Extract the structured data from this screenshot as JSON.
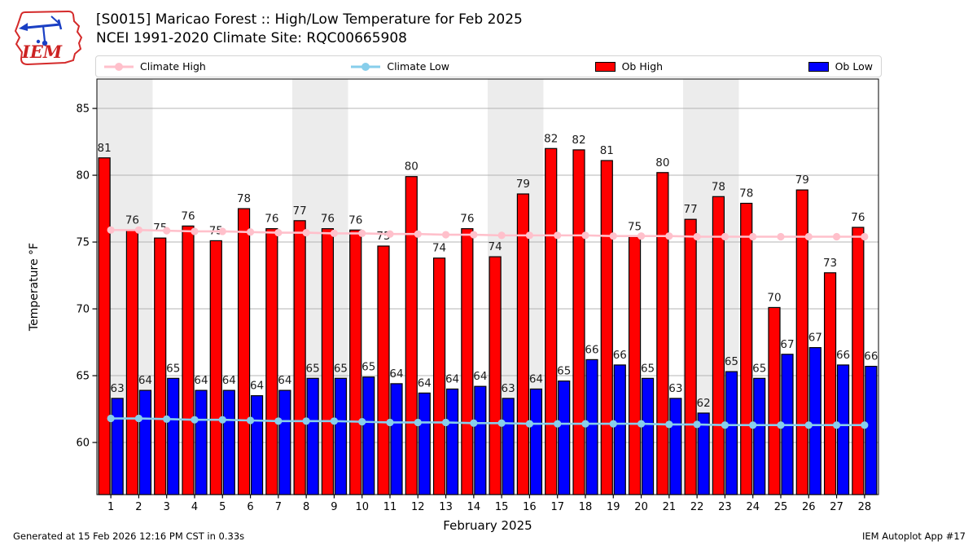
{
  "header": {
    "logo_text": "IEM",
    "title_line1": "[S0015] Maricao Forest :: High/Low Temperature for Feb 2025",
    "title_line2": "NCEI 1991-2020 Climate Site: RQC00665908"
  },
  "legend": {
    "items": [
      {
        "label": "Climate High",
        "type": "line",
        "color": "#ffc0cb"
      },
      {
        "label": "Climate Low",
        "type": "line",
        "color": "#87ceeb"
      },
      {
        "label": "Ob High",
        "type": "patch",
        "color": "#ff0000"
      },
      {
        "label": "Ob Low",
        "type": "patch",
        "color": "#0000ff"
      }
    ]
  },
  "footer": {
    "left": "Generated at 15 Feb 2026 12:16 PM CST in 0.33s",
    "right": "IEM Autoplot App #17"
  },
  "chart_data": {
    "type": "bar",
    "title": "[S0015] Maricao Forest :: High/Low Temperature for Feb 2025",
    "subtitle": "NCEI 1991-2020 Climate Site: RQC00665908",
    "xlabel": "February 2025",
    "ylabel": "Temperature °F",
    "x": [
      1,
      2,
      3,
      4,
      5,
      6,
      7,
      8,
      9,
      10,
      11,
      12,
      13,
      14,
      15,
      16,
      17,
      18,
      19,
      20,
      21,
      22,
      23,
      24,
      25,
      26,
      27,
      28
    ],
    "ylim": [
      56.1,
      87.2
    ],
    "yticks": [
      60,
      65,
      70,
      75,
      80,
      85
    ],
    "grid": "horizontal",
    "legend_position": "top",
    "weekend_bands": [
      [
        1,
        2
      ],
      [
        8,
        9
      ],
      [
        15,
        16
      ],
      [
        22,
        23
      ]
    ],
    "band_color": "#ececec",
    "grid_color": "#b4b4b4",
    "series": [
      {
        "name": "Ob High",
        "type": "bar",
        "color": "#ff0000",
        "side": "left",
        "values": [
          81.3,
          75.9,
          75.3,
          76.2,
          75.1,
          77.5,
          76.0,
          76.6,
          76.0,
          75.9,
          74.7,
          79.9,
          73.8,
          76.0,
          73.9,
          78.6,
          82.0,
          81.9,
          81.1,
          75.4,
          80.2,
          76.7,
          78.4,
          77.9,
          70.1,
          78.9,
          72.7,
          76.1
        ],
        "point_labels": [
          81,
          76,
          75,
          76,
          75,
          78,
          76,
          77,
          76,
          76,
          75,
          80,
          74,
          76,
          74,
          79,
          82,
          82,
          81,
          75,
          80,
          77,
          78,
          78,
          70,
          79,
          73,
          76
        ]
      },
      {
        "name": "Ob Low",
        "type": "bar",
        "color": "#0000ff",
        "side": "right",
        "values": [
          63.3,
          63.9,
          64.8,
          63.9,
          63.9,
          63.5,
          63.9,
          64.8,
          64.8,
          64.9,
          64.4,
          63.7,
          64.0,
          64.2,
          63.3,
          64.0,
          64.6,
          66.2,
          65.8,
          64.8,
          63.3,
          62.2,
          65.3,
          64.8,
          66.6,
          67.1,
          65.8,
          65.7
        ],
        "point_labels": [
          63,
          64,
          65,
          64,
          64,
          64,
          64,
          65,
          65,
          65,
          64,
          64,
          64,
          64,
          63,
          64,
          65,
          66,
          66,
          65,
          63,
          62,
          65,
          65,
          67,
          67,
          66,
          66
        ]
      },
      {
        "name": "Climate High",
        "type": "line",
        "color": "#ffc0cb",
        "values": [
          75.9,
          75.9,
          75.85,
          75.8,
          75.8,
          75.75,
          75.7,
          75.7,
          75.65,
          75.65,
          75.6,
          75.6,
          75.55,
          75.55,
          75.5,
          75.5,
          75.5,
          75.5,
          75.45,
          75.45,
          75.45,
          75.4,
          75.4,
          75.4,
          75.4,
          75.4,
          75.4,
          75.4
        ]
      },
      {
        "name": "Climate Low",
        "type": "line",
        "color": "#87ceeb",
        "values": [
          61.8,
          61.8,
          61.75,
          61.7,
          61.7,
          61.65,
          61.6,
          61.6,
          61.6,
          61.55,
          61.5,
          61.5,
          61.5,
          61.45,
          61.45,
          61.4,
          61.4,
          61.4,
          61.4,
          61.4,
          61.35,
          61.35,
          61.3,
          61.3,
          61.3,
          61.3,
          61.3,
          61.3
        ]
      }
    ]
  }
}
